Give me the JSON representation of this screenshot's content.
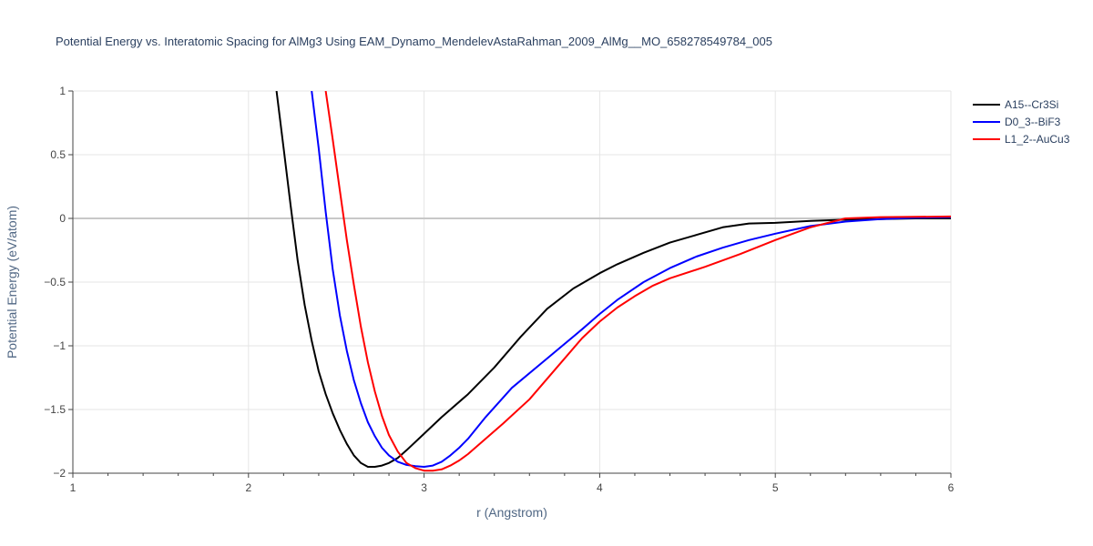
{
  "chart_data": {
    "type": "line",
    "title": "Potential Energy vs. Interatomic Spacing for AlMg3 Using EAM_Dynamo_MendelevAstaRahman_2009_AlMg__MO_658278549784_005",
    "xlabel": "r (Angstrom)",
    "ylabel": "Potential Energy (eV/atom)",
    "xlim": [
      1,
      6
    ],
    "ylim": [
      -2,
      1
    ],
    "x_ticks": [
      1,
      2,
      3,
      4,
      5,
      6
    ],
    "x_tick_labels": [
      "1",
      "2",
      "3",
      "4",
      "5",
      "6"
    ],
    "y_ticks": [
      -2,
      -1.5,
      -1,
      -0.5,
      0,
      0.5,
      1
    ],
    "y_tick_labels": [
      "−2",
      "−1.5",
      "−1",
      "−0.5",
      "0",
      "0.5",
      "1"
    ],
    "grid": true,
    "legend_position": "top-right",
    "series": [
      {
        "name": "A15--Cr3Si",
        "color": "#000000",
        "x": [
          2.16,
          2.2,
          2.24,
          2.28,
          2.32,
          2.36,
          2.4,
          2.44,
          2.48,
          2.52,
          2.56,
          2.6,
          2.64,
          2.68,
          2.72,
          2.76,
          2.8,
          2.85,
          2.9,
          3.0,
          3.1,
          3.25,
          3.4,
          3.55,
          3.7,
          3.85,
          4.0,
          4.1,
          4.25,
          4.4,
          4.55,
          4.7,
          4.85,
          5.0,
          5.2,
          5.4,
          5.6,
          5.8,
          6.0
        ],
        "y": [
          1.0,
          0.55,
          0.1,
          -0.33,
          -0.68,
          -0.96,
          -1.2,
          -1.38,
          -1.53,
          -1.66,
          -1.77,
          -1.86,
          -1.92,
          -1.95,
          -1.95,
          -1.94,
          -1.92,
          -1.88,
          -1.82,
          -1.69,
          -1.56,
          -1.38,
          -1.17,
          -0.93,
          -0.71,
          -0.55,
          -0.43,
          -0.36,
          -0.27,
          -0.19,
          -0.13,
          -0.07,
          -0.04,
          -0.035,
          -0.02,
          -0.01,
          -0.005,
          0.0,
          0.0
        ]
      },
      {
        "name": "D0_3--BiF3",
        "color": "#0000ff",
        "x": [
          2.36,
          2.4,
          2.44,
          2.48,
          2.52,
          2.56,
          2.6,
          2.64,
          2.68,
          2.72,
          2.76,
          2.8,
          2.85,
          2.9,
          2.95,
          3.0,
          3.05,
          3.1,
          3.15,
          3.2,
          3.25,
          3.35,
          3.5,
          3.7,
          3.9,
          4.0,
          4.1,
          4.25,
          4.4,
          4.55,
          4.7,
          4.85,
          5.0,
          5.2,
          5.4,
          5.6,
          5.8,
          6.0
        ],
        "y": [
          1.0,
          0.55,
          0.05,
          -0.4,
          -0.76,
          -1.04,
          -1.27,
          -1.45,
          -1.6,
          -1.71,
          -1.8,
          -1.86,
          -1.91,
          -1.935,
          -1.945,
          -1.95,
          -1.94,
          -1.91,
          -1.86,
          -1.8,
          -1.73,
          -1.56,
          -1.33,
          -1.1,
          -0.87,
          -0.75,
          -0.64,
          -0.5,
          -0.39,
          -0.3,
          -0.23,
          -0.17,
          -0.12,
          -0.06,
          -0.025,
          -0.005,
          0.005,
          0.01
        ]
      },
      {
        "name": "L1_2--AuCu3",
        "color": "#ff0000",
        "x": [
          2.44,
          2.48,
          2.52,
          2.56,
          2.6,
          2.64,
          2.68,
          2.72,
          2.76,
          2.8,
          2.85,
          2.9,
          2.95,
          3.0,
          3.05,
          3.1,
          3.15,
          3.2,
          3.25,
          3.3,
          3.45,
          3.6,
          3.75,
          3.9,
          4.0,
          4.1,
          4.2,
          4.3,
          4.4,
          4.6,
          4.8,
          5.0,
          5.2,
          5.4,
          5.6,
          5.8,
          6.0
        ],
        "y": [
          1.0,
          0.62,
          0.22,
          -0.17,
          -0.52,
          -0.85,
          -1.13,
          -1.36,
          -1.55,
          -1.7,
          -1.83,
          -1.92,
          -1.96,
          -1.98,
          -1.98,
          -1.97,
          -1.94,
          -1.9,
          -1.85,
          -1.79,
          -1.61,
          -1.42,
          -1.18,
          -0.94,
          -0.81,
          -0.7,
          -0.61,
          -0.53,
          -0.47,
          -0.38,
          -0.28,
          -0.17,
          -0.07,
          0.0,
          0.01,
          0.012,
          0.015
        ]
      }
    ]
  }
}
